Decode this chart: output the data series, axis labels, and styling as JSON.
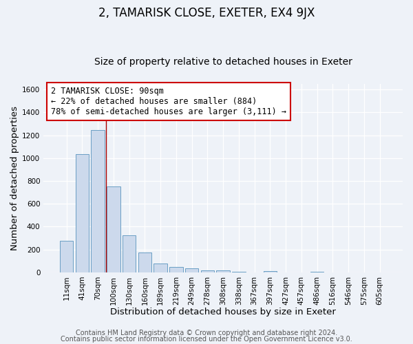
{
  "title": "2, TAMARISK CLOSE, EXETER, EX4 9JX",
  "subtitle": "Size of property relative to detached houses in Exeter",
  "xlabel": "Distribution of detached houses by size in Exeter",
  "ylabel": "Number of detached properties",
  "bar_labels": [
    "11sqm",
    "41sqm",
    "70sqm",
    "100sqm",
    "130sqm",
    "160sqm",
    "189sqm",
    "219sqm",
    "249sqm",
    "278sqm",
    "308sqm",
    "338sqm",
    "367sqm",
    "397sqm",
    "427sqm",
    "457sqm",
    "486sqm",
    "516sqm",
    "546sqm",
    "575sqm",
    "605sqm"
  ],
  "bar_values": [
    275,
    1035,
    1245,
    750,
    325,
    175,
    80,
    50,
    35,
    20,
    20,
    5,
    0,
    10,
    0,
    0,
    5,
    0,
    0,
    0,
    0
  ],
  "bar_color": "#ccd9ec",
  "bar_edge_color": "#6a9ec4",
  "vline_color": "#aa0000",
  "annotation_text": "2 TAMARISK CLOSE: 90sqm\n← 22% of detached houses are smaller (884)\n78% of semi-detached houses are larger (3,111) →",
  "annotation_box_color": "#ffffff",
  "annotation_box_edge": "#cc0000",
  "ylim": [
    0,
    1650
  ],
  "yticks": [
    0,
    200,
    400,
    600,
    800,
    1000,
    1200,
    1400,
    1600
  ],
  "footer1": "Contains HM Land Registry data © Crown copyright and database right 2024.",
  "footer2": "Contains public sector information licensed under the Open Government Licence v3.0.",
  "bg_color": "#eef2f8",
  "grid_color": "#ffffff",
  "title_fontsize": 12,
  "subtitle_fontsize": 10,
  "axis_label_fontsize": 9.5,
  "tick_fontsize": 7.5,
  "annotation_fontsize": 8.5,
  "footer_fontsize": 7
}
